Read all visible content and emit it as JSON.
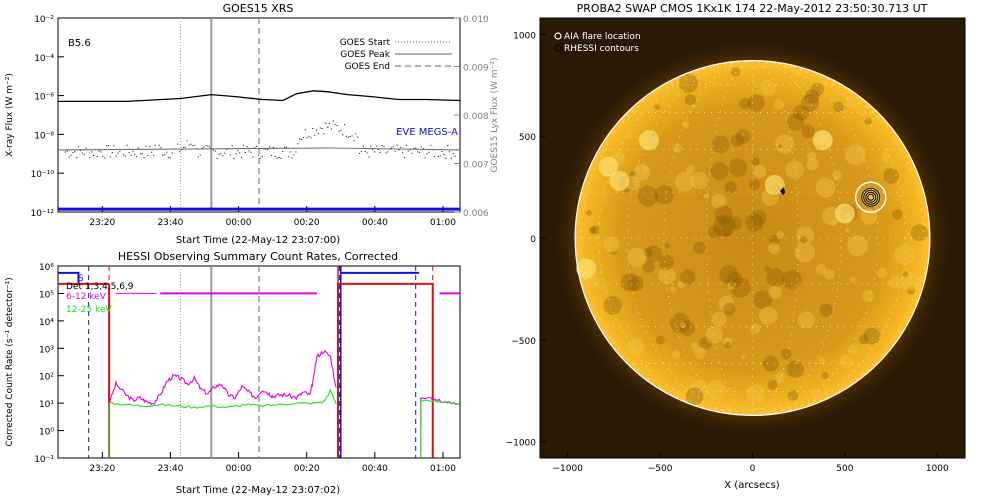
{
  "chart_data": [
    {
      "type": "line",
      "title": "GOES15 XRS",
      "xlabel": "Start Time (22-May-12 23:07:00)",
      "ylabel": "X-ray Flux (W m⁻²)",
      "y2label": "GOES15 Lyx Flux (W m⁻²)",
      "x_ticks": [
        "23:20",
        "23:40",
        "00:00",
        "00:20",
        "00:40",
        "01:00"
      ],
      "x_tick_minutes": [
        13,
        33,
        53,
        73,
        93,
        113
      ],
      "xlim_minutes": [
        0,
        118
      ],
      "y_scale": "log",
      "ylim_exp": [
        -12,
        -2
      ],
      "y_ticks": [
        "10⁻²",
        "10⁻⁴",
        "10⁻⁶",
        "10⁻⁸",
        "10⁻¹⁰",
        "10⁻¹²"
      ],
      "y_tick_exp": [
        -2,
        -4,
        -6,
        -8,
        -10,
        -12
      ],
      "y2lim": [
        0.006,
        0.01
      ],
      "y2_ticks": [
        "0.010",
        "0.009",
        "0.008",
        "0.007",
        "0.006"
      ],
      "class_label": "B5.6",
      "legend": [
        {
          "label": "GOES Start",
          "style": "dotted"
        },
        {
          "label": "GOES Peak",
          "style": "solid"
        },
        {
          "label": "GOES End",
          "style": "dashed"
        }
      ],
      "eve_label": "EVE MEGS-A",
      "eve_color": "#1010e0",
      "markers_minutes": {
        "start": 36,
        "peak": 45,
        "end": 59
      },
      "series": [
        {
          "color": "#000000",
          "minutes": [
            0,
            20,
            36,
            45,
            52,
            60,
            66,
            70,
            75,
            79,
            85,
            92,
            100,
            108,
            118
          ],
          "log_values": [
            -6.3,
            -6.3,
            -6.15,
            -5.95,
            -6.05,
            -6.2,
            -6.25,
            -5.9,
            -5.75,
            -5.8,
            -5.95,
            -6.05,
            -6.2,
            -6.2,
            -6.25
          ]
        },
        {
          "color": "#707070",
          "minutes": [
            0,
            40,
            60,
            80,
            100,
            118
          ],
          "log_values": [
            -8.8,
            -8.75,
            -8.72,
            -8.7,
            -8.75,
            -8.8
          ]
        }
      ]
    },
    {
      "type": "line",
      "title": "HESSI Observing Summary Count Rates, Corrected",
      "xlabel": "Start Time (22-May-12 23:07:02)",
      "ylabel": "Corrected Count Rate (s⁻¹ detector⁻¹)",
      "x_ticks": [
        "23:20",
        "23:40",
        "00:00",
        "00:20",
        "00:40",
        "01:00"
      ],
      "x_tick_minutes": [
        13,
        33,
        53,
        73,
        93,
        113
      ],
      "xlim_minutes": [
        0,
        118
      ],
      "y_scale": "log",
      "ylim_exp": [
        -1,
        6
      ],
      "y_ticks": [
        "10⁶",
        "10⁵",
        "10⁴",
        "10³",
        "10²",
        "10¹",
        "10⁰",
        "10⁻¹"
      ],
      "y_tick_exp": [
        6,
        5,
        4,
        3,
        2,
        1,
        0,
        -1
      ],
      "legend": [
        {
          "label": "S",
          "color": "#1010e0"
        },
        {
          "label": "Det 1,3,4,5,6,9",
          "color": "#000000"
        },
        {
          "label": "6-12 keV",
          "color": "#e000e0"
        },
        {
          "label": "12-25 keV",
          "color": "#20e020"
        }
      ],
      "series": [
        {
          "name": "6-12 keV",
          "color": "#e000e0",
          "minutes": [
            15,
            17,
            20,
            22,
            24,
            26,
            28,
            30,
            32,
            34,
            36,
            38,
            40,
            42,
            44,
            46,
            48,
            50,
            52,
            54,
            56,
            58,
            60,
            62,
            63,
            65,
            67,
            70,
            72,
            74,
            75,
            76,
            78,
            80,
            82
          ],
          "log_values": [
            1.0,
            1.7,
            1.3,
            1.1,
            1.2,
            1.05,
            1.0,
            1.3,
            1.8,
            2.0,
            1.9,
            1.7,
            1.9,
            1.5,
            1.35,
            1.6,
            1.7,
            1.3,
            1.2,
            1.6,
            1.4,
            1.2,
            1.5,
            1.35,
            1.25,
            1.3,
            1.3,
            1.2,
            1.4,
            1.3,
            1.9,
            2.7,
            2.9,
            2.7,
            1.3
          ]
        },
        {
          "name": "12-25 keV",
          "color": "#20e020",
          "minutes": [
            15,
            20,
            25,
            30,
            35,
            40,
            45,
            50,
            55,
            60,
            65,
            70,
            75,
            78,
            80,
            82
          ],
          "log_values": [
            1.0,
            0.95,
            0.9,
            0.95,
            0.9,
            0.85,
            0.9,
            0.85,
            0.95,
            0.9,
            0.95,
            1.0,
            1.0,
            1.05,
            1.45,
            0.9
          ]
        }
      ]
    },
    {
      "type": "heatmap",
      "title": "PROBA2 SWAP CMOS 1Kx1K 174 22-May-2012 23:50:30.713 UT",
      "xlabel": "X (arcsecs)",
      "xlim": [
        -1150,
        1150
      ],
      "ylim": [
        -1080,
        1080
      ],
      "x_ticks": [
        -1000,
        -500,
        0,
        500,
        1000
      ],
      "y_ticks": [
        1000,
        500,
        0,
        -500,
        -1000
      ],
      "legend": [
        {
          "label": "AIA flare location",
          "color": "#ffffff"
        },
        {
          "label": "RHESSI contours",
          "color": "#000000"
        }
      ],
      "flare_location": {
        "x": 640,
        "y": 200
      }
    }
  ],
  "colors": {
    "sun_core": "#d89a18",
    "sun_limb": "#ffb400",
    "eve": "#1010e0",
    "hessi_red": "#e01010",
    "hessi_blue": "#1010e0"
  }
}
